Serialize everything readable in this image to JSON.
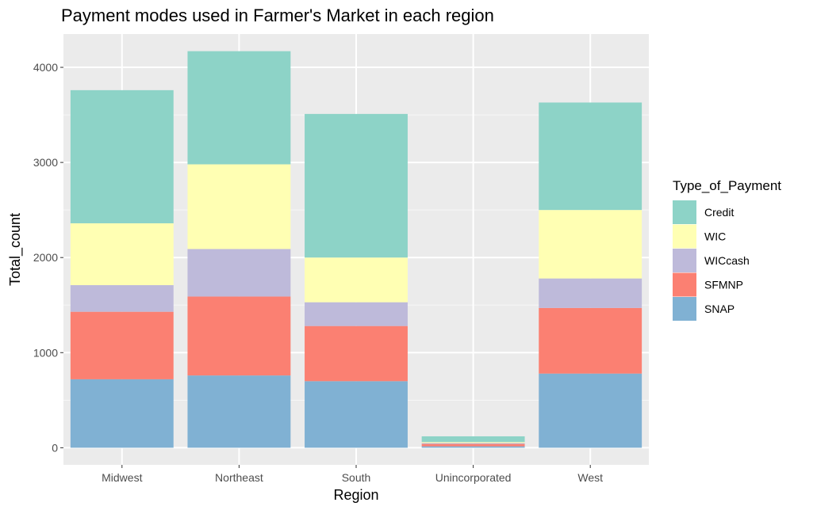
{
  "chart_data": {
    "type": "bar",
    "stacked": true,
    "title": "Payment modes used in Farmer's Market in each region",
    "xlabel": "Region",
    "ylabel": "Total_count",
    "categories": [
      "Midwest",
      "Northeast",
      "South",
      "Unincorporated",
      "West"
    ],
    "ylim": [
      -180,
      4350
    ],
    "yticks": [
      0,
      1000,
      2000,
      3000,
      4000
    ],
    "grid": true,
    "legend": {
      "title": "Type_of_Payment",
      "placement": "right",
      "order": [
        "Credit",
        "WIC",
        "WICcash",
        "SFMNP",
        "SNAP"
      ]
    },
    "series": [
      {
        "name": "SNAP",
        "color": "#80B1D3",
        "values": [
          720,
          760,
          700,
          15,
          780
        ]
      },
      {
        "name": "SFMNP",
        "color": "#FB8072",
        "values": [
          710,
          830,
          580,
          25,
          690
        ]
      },
      {
        "name": "WICcash",
        "color": "#BEBADA",
        "values": [
          280,
          500,
          250,
          10,
          310
        ]
      },
      {
        "name": "WIC",
        "color": "#FFFFB3",
        "values": [
          650,
          890,
          470,
          10,
          720
        ]
      },
      {
        "name": "Credit",
        "color": "#8DD3C7",
        "values": [
          1400,
          1190,
          1510,
          60,
          1130
        ]
      }
    ]
  }
}
